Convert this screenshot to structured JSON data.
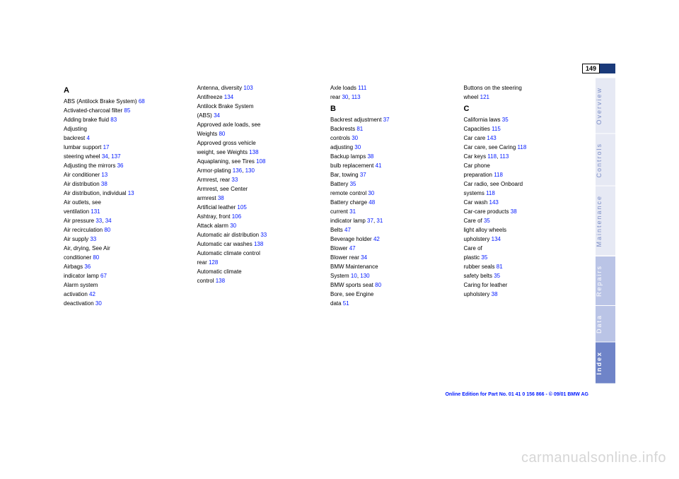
{
  "page_number": "149",
  "side_tabs": [
    {
      "label": "Overview",
      "class": "tab"
    },
    {
      "label": "Controls",
      "class": "tab"
    },
    {
      "label": "Maintenance",
      "class": "tab"
    },
    {
      "label": "Repairs",
      "class": "tab light"
    },
    {
      "label": "Data",
      "class": "tab light"
    },
    {
      "label": "Index",
      "class": "tab active"
    }
  ],
  "columns": [
    [
      {
        "t": "A",
        "head": true
      },
      {
        "t": "ABS (Antilock Brake System) ",
        "r": "68"
      },
      {
        "t": "Activated-charcoal filter ",
        "r": "85"
      },
      {
        "t": "Adding brake fluid ",
        "r": "83"
      },
      {
        "t": "Adjusting"
      },
      {
        "t": "backrest ",
        "r": "4"
      },
      {
        "t": "lumbar support ",
        "r": "17"
      },
      {
        "t": "steering wheel ",
        "r": "34",
        "r2": "137"
      },
      {
        "t": "Adjusting the mirrors ",
        "r": "36"
      },
      {
        "t": "Air conditioner ",
        "r": "13"
      },
      {
        "t": "Air distribution ",
        "r": "38"
      },
      {
        "t": "Air distribution, individual ",
        "r": "13"
      },
      {
        "t": "Air outlets, see"
      },
      {
        "t": "ventilation ",
        "r": "131"
      },
      {
        "t": "Air pressure ",
        "r": "33",
        "r2": "34"
      },
      {
        "t": "Air recirculation ",
        "r": "80"
      },
      {
        "t": "Air supply ",
        "r": "33"
      },
      {
        "t": "Air, drying, See Air"
      },
      {
        "t": "conditioner ",
        "r": "80"
      },
      {
        "t": "Airbags ",
        "r": "36"
      },
      {
        "t": "indicator lamp ",
        "r": "67"
      },
      {
        "t": "Alarm system"
      },
      {
        "t": "activation ",
        "r": "42"
      },
      {
        "t": "deactivation ",
        "r": "30"
      }
    ],
    [
      {
        "t": "Antenna, diversity ",
        "r": "103"
      },
      {
        "t": "Antifreeze ",
        "r": "134"
      },
      {
        "t": "Antilock Brake System"
      },
      {
        "t": "(ABS) ",
        "r": "34"
      },
      {
        "t": "Approved axle loads, see"
      },
      {
        "t": "Weights ",
        "r": "80"
      },
      {
        "t": "Approved gross vehicle"
      },
      {
        "t": "weight, see Weights ",
        "r": "138"
      },
      {
        "t": "Aquaplaning, see Tires ",
        "r": "108"
      },
      {
        "t": "Armor-plating ",
        "r": "136",
        "r2": "130"
      },
      {
        "t": "Armrest, rear ",
        "r": "33"
      },
      {
        "t": "Armrest, see Center"
      },
      {
        "t": "armrest ",
        "r": "38"
      },
      {
        "t": "Artificial leather ",
        "r": "105"
      },
      {
        "t": "Ashtray, front ",
        "r": "106"
      },
      {
        "t": "Attack alarm ",
        "r": "30"
      },
      {
        "t": "Automatic air distribution ",
        "r": "33"
      },
      {
        "t": "Automatic car washes ",
        "r": "138"
      },
      {
        "t": "Automatic climate control"
      },
      {
        "t": "rear ",
        "r": "128"
      },
      {
        "t": "Automatic climate"
      },
      {
        "t": "control ",
        "r": "138"
      }
    ],
    [
      {
        "t": "Axle loads ",
        "r": "111"
      },
      {
        "t": "rear ",
        "r": "30",
        "r2": "113"
      },
      {
        "t": "B",
        "head": true
      },
      {
        "t": "Backrest adjustment ",
        "r": "37"
      },
      {
        "t": "Backrests ",
        "r": "81"
      },
      {
        "t": "controls ",
        "r": "30"
      },
      {
        "t": "adjusting ",
        "r": "30"
      },
      {
        "t": "Backup lamps ",
        "r": "38"
      },
      {
        "t": "bulb replacement ",
        "r": "41"
      },
      {
        "t": "Bar, towing ",
        "r": "37"
      },
      {
        "t": "Battery ",
        "r": "35"
      },
      {
        "t": "remote control ",
        "r": "30"
      },
      {
        "t": "Battery charge ",
        "r": "48"
      },
      {
        "t": "current ",
        "r": "31"
      },
      {
        "t": "indicator lamp ",
        "r": "37",
        "r2": "31"
      },
      {
        "t": "Belts ",
        "r": "47"
      },
      {
        "t": "Beverage holder ",
        "r": "42"
      },
      {
        "t": "Blower ",
        "r": "47"
      },
      {
        "t": "Blower rear ",
        "r": "34"
      },
      {
        "t": "BMW Maintenance"
      },
      {
        "t": "System ",
        "r": "10",
        "r2": "130"
      },
      {
        "t": "BMW sports seat ",
        "r": "80"
      },
      {
        "t": "Bore, see Engine"
      },
      {
        "t": "data ",
        "r": "51"
      }
    ],
    [
      {
        "t": "Buttons on the steering"
      },
      {
        "t": "wheel ",
        "r": "121"
      },
      {
        "t": "C",
        "head": true
      },
      {
        "t": "California laws ",
        "r": "35"
      },
      {
        "t": "Capacities ",
        "r": "115"
      },
      {
        "t": "Car care ",
        "r": "143"
      },
      {
        "t": "Car care, see Caring ",
        "r": "118"
      },
      {
        "t": "Car keys ",
        "r": "118",
        "r2": "113"
      },
      {
        "t": "Car phone"
      },
      {
        "t": "preparation ",
        "r": "118"
      },
      {
        "t": "Car radio, see Onboard"
      },
      {
        "t": "systems ",
        "r": "118"
      },
      {
        "t": "Car wash ",
        "r": "143"
      },
      {
        "t": "Car-care products ",
        "r": "38"
      },
      {
        "t": "Care of ",
        "r": "35"
      },
      {
        "t": "light alloy wheels"
      },
      {
        "t": "upholstery ",
        "r": "134"
      },
      {
        "t": "Care of"
      },
      {
        "t": "plastic ",
        "r": "35"
      },
      {
        "t": "rubber seals ",
        "r": "81"
      },
      {
        "t": "safety belts ",
        "r": "35"
      },
      {
        "t": "Caring for leather"
      },
      {
        "t": "upholstery ",
        "r": "38"
      }
    ]
  ],
  "footer_text": "Online Edition for Part No. 01 41 0 156 866 - © 09/01 BMW AG",
  "watermark": "carmanualsonline.info",
  "colors": {
    "link": "#0018ff",
    "tab_bg": "#e6e9f4",
    "tab_fg": "#7d8fc7",
    "tab_light_bg": "#bac4e6",
    "tab_active_bg": "#6f84c8",
    "page_bg": "#ffffff",
    "page_num_box": "#1a3a7a"
  }
}
